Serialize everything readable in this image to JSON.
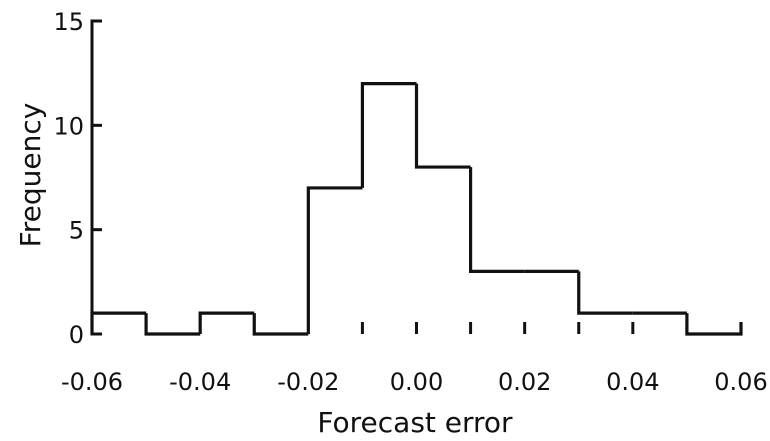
{
  "chart_data": {
    "type": "bar",
    "subtype": "histogram",
    "title": "",
    "xlabel": "Forecast error",
    "ylabel": "Frequency",
    "xlim": [
      -0.06,
      0.06
    ],
    "ylim": [
      0,
      15
    ],
    "bin_width": 0.01,
    "bins": [
      {
        "start": -0.06,
        "end": -0.05,
        "value": 1
      },
      {
        "start": -0.05,
        "end": -0.04,
        "value": 0
      },
      {
        "start": -0.04,
        "end": -0.03,
        "value": 1
      },
      {
        "start": -0.03,
        "end": -0.02,
        "value": 0
      },
      {
        "start": -0.02,
        "end": -0.01,
        "value": 7
      },
      {
        "start": -0.01,
        "end": 0.0,
        "value": 12
      },
      {
        "start": 0.0,
        "end": 0.01,
        "value": 8
      },
      {
        "start": 0.01,
        "end": 0.02,
        "value": 3
      },
      {
        "start": 0.02,
        "end": 0.03,
        "value": 3
      },
      {
        "start": 0.03,
        "end": 0.04,
        "value": 1
      },
      {
        "start": 0.04,
        "end": 0.05,
        "value": 1
      },
      {
        "start": 0.05,
        "end": 0.06,
        "value": 0
      }
    ],
    "x_tick_labels": [
      "-0.06",
      "-0.04",
      "-0.02",
      "0.00",
      "0.02",
      "0.04",
      "0.06"
    ],
    "x_tick_values": [
      -0.06,
      -0.04,
      -0.02,
      0.0,
      0.02,
      0.04,
      0.06
    ],
    "y_tick_labels": [
      "0",
      "5",
      "10",
      "15"
    ],
    "y_tick_values": [
      0,
      5,
      10,
      15
    ],
    "grid": false,
    "legend": "none"
  }
}
